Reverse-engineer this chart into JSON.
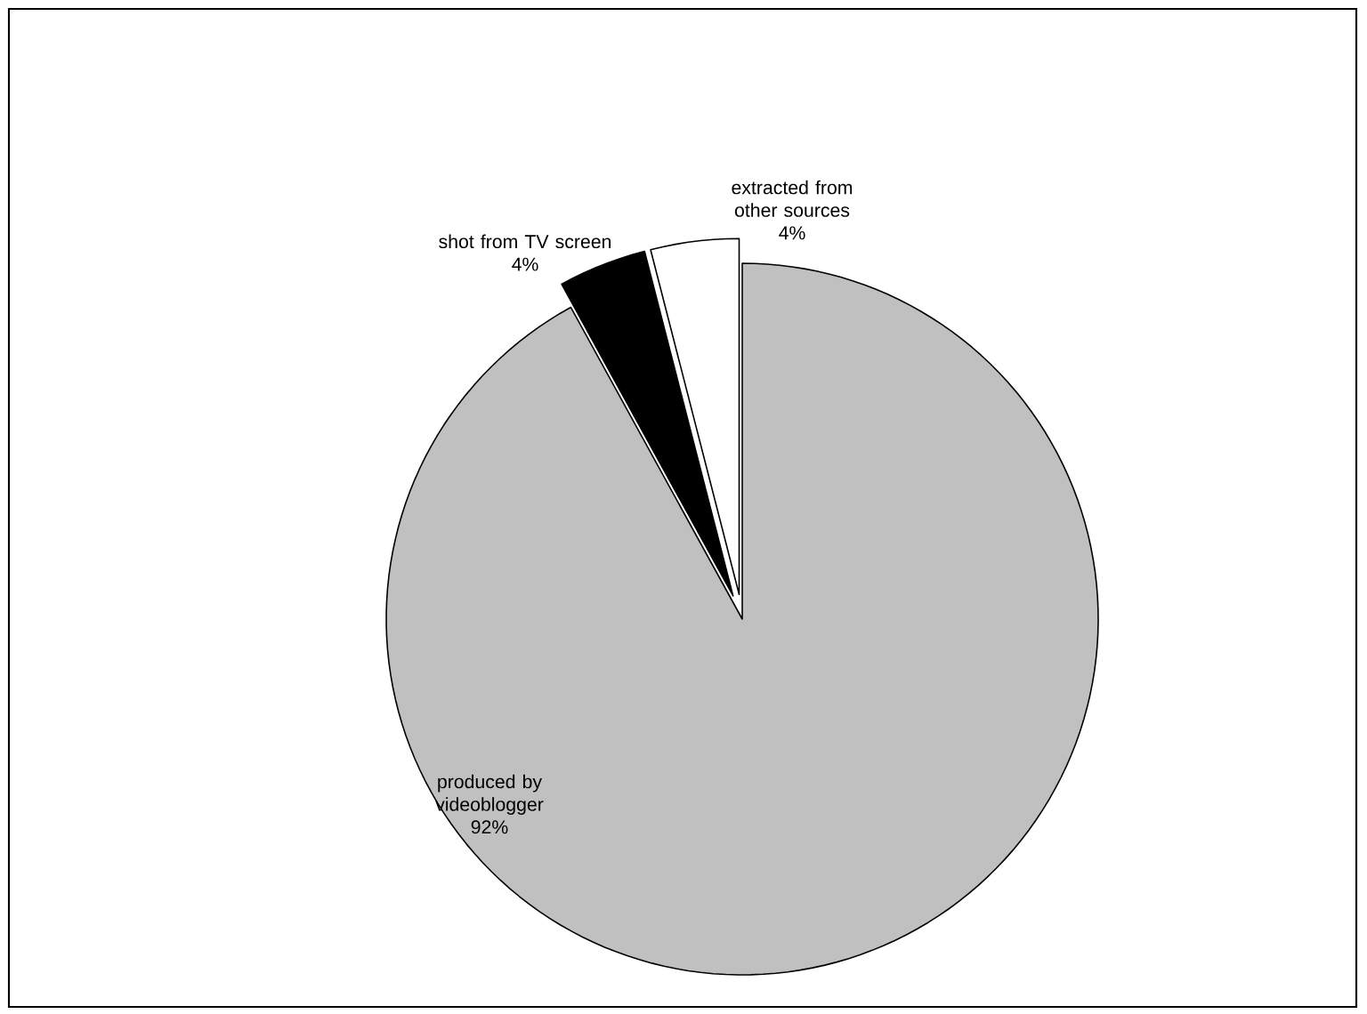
{
  "chart_data": {
    "type": "pie",
    "categories": [
      "extracted from other sources",
      "shot from TV screen",
      "produced by videoblogger"
    ],
    "values": [
      4,
      4,
      92
    ],
    "colors": [
      "#ffffff",
      "#000000",
      "#c0c0c0"
    ],
    "value_labels": [
      "4%",
      "4%",
      "92%"
    ]
  }
}
